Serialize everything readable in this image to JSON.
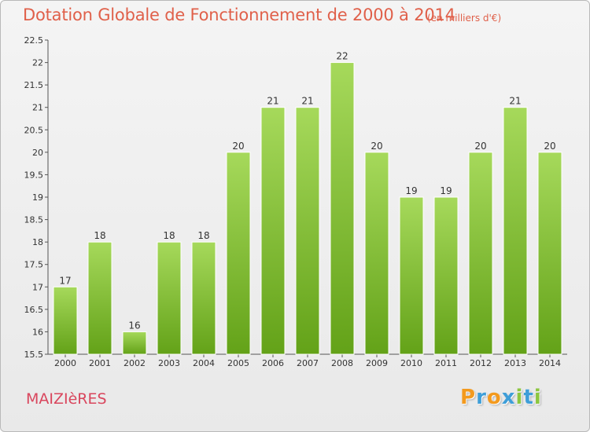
{
  "header": {
    "title": "Dotation Globale de Fonctionnement de 2000 à 2014",
    "unit": "(en milliers d'€)"
  },
  "footer": {
    "commune": "MAIZIèRES",
    "logo": "Proxiti"
  },
  "colors": {
    "title": "#e0604a",
    "bar_top": "#a6d95b",
    "bar_bottom": "#63a218",
    "commune": "#d9465d",
    "logo_letters": [
      "#f39a1e",
      "#3e9ed8",
      "#f39a1e",
      "#3e9ed8",
      "#8cc63f",
      "#3e9ed8",
      "#8cc63f"
    ]
  },
  "chart_data": {
    "type": "bar",
    "title": "Dotation Globale de Fonctionnement de 2000 à 2014",
    "subtitle": "(en milliers d'€)",
    "xlabel": "",
    "ylabel": "",
    "categories": [
      "2000",
      "2001",
      "2002",
      "2003",
      "2004",
      "2005",
      "2006",
      "2007",
      "2008",
      "2009",
      "2010",
      "2011",
      "2012",
      "2013",
      "2014"
    ],
    "values": [
      17,
      18,
      16,
      18,
      18,
      20,
      21,
      21,
      22,
      20,
      19,
      19,
      20,
      21,
      20
    ],
    "data_labels": [
      "17",
      "18",
      "16",
      "18",
      "18",
      "20",
      "21",
      "21",
      "22",
      "20",
      "19",
      "19",
      "20",
      "21",
      "20"
    ],
    "ylim": [
      15.5,
      22.5
    ],
    "yticks": [
      15.5,
      16,
      16.5,
      17,
      17.5,
      18,
      18.5,
      19,
      19.5,
      20,
      20.5,
      21,
      21.5,
      22,
      22.5
    ],
    "grid": false,
    "legend": "none"
  }
}
